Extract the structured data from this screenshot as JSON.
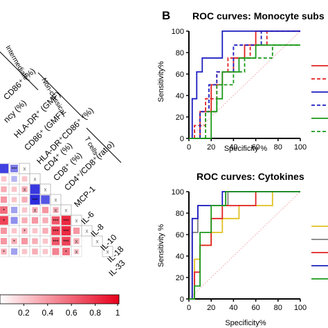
{
  "panel_b_letter": "B",
  "heatmap": {
    "group_labels": [
      "Intermediate",
      "Non-classical",
      "T cells"
    ],
    "row_labels": [
      "CD86⁺ (%)",
      "ncy (%)",
      "HLA-DR⁺ (GMF)",
      "CD86⁺ (GMF)",
      "HLA-DR⁺CD86⁺ (%)",
      "CD4⁺ (%)",
      "CD8⁺ (%)",
      "CD4⁺/CD8⁺(ratio)",
      "MCP-1",
      "IL-6",
      "IL-8",
      "IL-10",
      "IL-18",
      "IL-33"
    ],
    "colorbar_ticks": [
      "0.2",
      "0.4",
      "0.6",
      "0.8",
      "1"
    ],
    "star_marks": [
      "***",
      "**",
      "*",
      "x"
    ],
    "colors": {
      "positive": "#e8001c",
      "negative": "#1a1adb",
      "empty": "#ffffff"
    }
  },
  "chart_data": [
    {
      "type": "line",
      "title": "ROC curves: Monocyte subs",
      "xlabel": "Specificity %",
      "ylabel": "Sensitivity%",
      "xlim": [
        100,
        0
      ],
      "ylim": [
        0,
        100
      ],
      "xticks": [
        "0",
        "20",
        "40",
        "60",
        "80",
        "100"
      ],
      "yticks": [
        "0",
        "20",
        "40",
        "60",
        "80",
        "100"
      ],
      "reference_line": true,
      "series": [
        {
          "color": "#e02020",
          "dash": false,
          "x": [
            0,
            10,
            10,
            20,
            20,
            30,
            30,
            40,
            40,
            50,
            50,
            60,
            60,
            100
          ],
          "y": [
            0,
            0,
            25,
            25,
            50,
            50,
            62,
            62,
            75,
            75,
            87,
            87,
            100,
            100
          ]
        },
        {
          "color": "#e02020",
          "dash": true,
          "x": [
            0,
            5,
            5,
            15,
            15,
            25,
            25,
            35,
            35,
            55,
            55,
            70,
            70,
            100
          ],
          "y": [
            0,
            0,
            12,
            12,
            37,
            37,
            62,
            62,
            75,
            75,
            87,
            87,
            100,
            100
          ]
        },
        {
          "color": "#1c1cc0",
          "dash": false,
          "x": [
            0,
            3,
            3,
            7,
            7,
            12,
            12,
            30,
            30,
            100
          ],
          "y": [
            0,
            0,
            37,
            37,
            62,
            62,
            75,
            75,
            100,
            100
          ]
        },
        {
          "color": "#1c1cc0",
          "dash": true,
          "x": [
            0,
            10,
            10,
            18,
            18,
            25,
            25,
            40,
            40,
            65,
            65,
            100
          ],
          "y": [
            0,
            0,
            25,
            25,
            50,
            50,
            62,
            62,
            87,
            87,
            100,
            100
          ]
        },
        {
          "color": "#1a9a1a",
          "dash": false,
          "x": [
            0,
            20,
            20,
            25,
            25,
            30,
            30,
            45,
            45,
            60,
            60,
            100
          ],
          "y": [
            0,
            0,
            25,
            25,
            37,
            37,
            62,
            62,
            75,
            75,
            87,
            87
          ]
        },
        {
          "color": "#1a9a1a",
          "dash": true,
          "x": [
            0,
            15,
            15,
            25,
            25,
            40,
            40,
            50,
            50,
            75,
            75,
            100
          ],
          "y": [
            0,
            0,
            25,
            25,
            50,
            50,
            62,
            62,
            75,
            75,
            87,
            87
          ]
        }
      ]
    },
    {
      "type": "line",
      "title": "ROC curves: Cytokines",
      "xlabel": "Specificity%",
      "ylabel": "Sensitivity %",
      "xlim": [
        100,
        0
      ],
      "ylim": [
        0,
        100
      ],
      "xticks": [
        "0",
        "20",
        "40",
        "60",
        "80",
        "100"
      ],
      "yticks": [
        "0",
        "20",
        "40",
        "60",
        "80",
        "100"
      ],
      "reference_line": true,
      "series": [
        {
          "color": "#e0c020",
          "dash": false,
          "x": [
            0,
            5,
            5,
            10,
            10,
            20,
            20,
            30,
            30,
            45,
            45,
            75,
            75,
            100
          ],
          "y": [
            0,
            0,
            37,
            37,
            50,
            50,
            62,
            62,
            75,
            75,
            87,
            87,
            100,
            100
          ]
        },
        {
          "color": "#808080",
          "dash": false,
          "x": [
            0,
            3,
            3,
            8,
            8,
            35,
            35,
            100
          ],
          "y": [
            0,
            0,
            62,
            62,
            87,
            87,
            100,
            100
          ]
        },
        {
          "color": "#e02020",
          "dash": false,
          "x": [
            0,
            5,
            5,
            10,
            10,
            20,
            20,
            30,
            30,
            60,
            60,
            100
          ],
          "y": [
            0,
            0,
            25,
            25,
            50,
            50,
            75,
            75,
            87,
            87,
            100,
            100
          ]
        },
        {
          "color": "#1c1cc0",
          "dash": false,
          "x": [
            0,
            3,
            3,
            8,
            8,
            30,
            30,
            100
          ],
          "y": [
            0,
            0,
            75,
            75,
            87,
            87,
            100,
            100
          ]
        },
        {
          "color": "#1a9a1a",
          "dash": false,
          "x": [
            0,
            5,
            5,
            10,
            10,
            20,
            20,
            33,
            33,
            100
          ],
          "y": [
            0,
            0,
            12,
            12,
            62,
            62,
            87,
            87,
            100,
            100
          ]
        }
      ]
    }
  ]
}
